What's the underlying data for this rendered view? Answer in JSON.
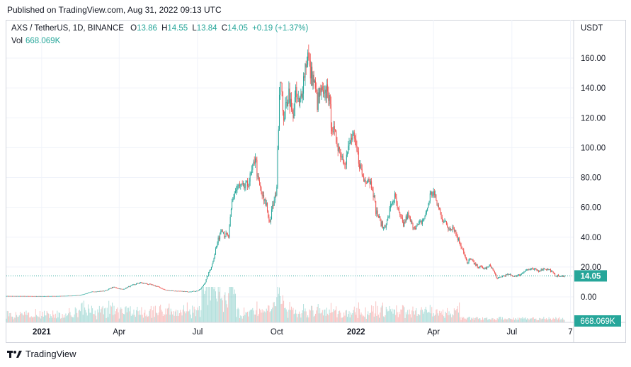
{
  "header": {
    "published": "Published on TradingView.com, Aug 31, 2022 09:13 UTC"
  },
  "legend": {
    "symbol": "AXS / TetherUS, 1D, BINANCE",
    "o_label": "O",
    "o_value": "13.86",
    "h_label": "H",
    "h_value": "14.55",
    "l_label": "L",
    "l_value": "13.84",
    "c_label": "C",
    "c_value": "14.05",
    "change": "+0.19 (+1.37%)",
    "vol_label": "Vol",
    "vol_value": "668.069K"
  },
  "price_axis": {
    "currency": "USDT",
    "last_price_badge": "14.05",
    "volume_badge": "668.069K"
  },
  "footer": {
    "brand": "TradingView"
  },
  "colors": {
    "up": "#26a69a",
    "down": "#ef5350",
    "badge": "#26a69a",
    "grid": "#f0f3fa"
  },
  "chart_data": {
    "type": "candlestick",
    "interval": "1D",
    "y_ticks": [
      "0.00",
      "20.00",
      "40.00",
      "60.00",
      "80.00",
      "100.00",
      "120.00",
      "140.00",
      "160.00"
    ],
    "y_tick_values": [
      0,
      20,
      40,
      60,
      80,
      100,
      120,
      140,
      160
    ],
    "x_ticks": [
      "2021",
      "Apr",
      "Jul",
      "Oct",
      "2022",
      "Apr",
      "Jul",
      "7"
    ],
    "x_tick_dates": [
      "2021-01-01",
      "2021-04-01",
      "2021-07-01",
      "2021-10-01",
      "2022-01-01",
      "2022-04-01",
      "2022-07-01",
      "2022-09-07"
    ],
    "bold_x_ticks": [
      "2021",
      "2022"
    ],
    "date_range": [
      "2020-11-21",
      "2022-08-31"
    ],
    "ylim": [
      -7,
      173
    ],
    "grid": true,
    "last_close": 14.05,
    "close_path": [
      [
        "2020-11-21",
        0.6
      ],
      [
        "2020-12-15",
        0.55
      ],
      [
        "2021-01-01",
        0.5
      ],
      [
        "2021-01-20",
        0.6
      ],
      [
        "2021-02-05",
        0.8
      ],
      [
        "2021-02-15",
        1.2
      ],
      [
        "2021-03-01",
        3.5
      ],
      [
        "2021-03-15",
        4.0
      ],
      [
        "2021-03-25",
        6.5
      ],
      [
        "2021-04-05",
        5.0
      ],
      [
        "2021-04-15",
        7.5
      ],
      [
        "2021-04-25",
        9.5
      ],
      [
        "2021-05-05",
        8.5
      ],
      [
        "2021-05-15",
        7.0
      ],
      [
        "2021-05-25",
        4.5
      ],
      [
        "2021-06-05",
        4.0
      ],
      [
        "2021-06-20",
        3.5
      ],
      [
        "2021-07-01",
        4.0
      ],
      [
        "2021-07-05",
        5.5
      ],
      [
        "2021-07-10",
        10.0
      ],
      [
        "2021-07-14",
        16.0
      ],
      [
        "2021-07-18",
        22.0
      ],
      [
        "2021-07-22",
        32.0
      ],
      [
        "2021-07-26",
        40.0
      ],
      [
        "2021-07-29",
        47.0
      ],
      [
        "2021-08-01",
        42.0
      ],
      [
        "2021-08-06",
        40.0
      ],
      [
        "2021-08-10",
        63.0
      ],
      [
        "2021-08-13",
        70.0
      ],
      [
        "2021-08-18",
        74.0
      ],
      [
        "2021-08-23",
        73.0
      ],
      [
        "2021-08-28",
        75.0
      ],
      [
        "2021-09-03",
        85.0
      ],
      [
        "2021-09-06",
        95.0
      ],
      [
        "2021-09-09",
        78.0
      ],
      [
        "2021-09-12",
        72.0
      ],
      [
        "2021-09-16",
        64.0
      ],
      [
        "2021-09-19",
        62.0
      ],
      [
        "2021-09-21",
        54.0
      ],
      [
        "2021-09-23",
        50.0
      ],
      [
        "2021-09-26",
        60.0
      ],
      [
        "2021-09-29",
        66.0
      ],
      [
        "2021-10-01",
        75.0
      ],
      [
        "2021-10-02",
        95.0
      ],
      [
        "2021-10-04",
        140.0
      ],
      [
        "2021-10-06",
        150.0
      ],
      [
        "2021-10-08",
        120.0
      ],
      [
        "2021-10-11",
        125.0
      ],
      [
        "2021-10-15",
        138.0
      ],
      [
        "2021-10-19",
        120.0
      ],
      [
        "2021-10-23",
        135.0
      ],
      [
        "2021-10-27",
        128.0
      ],
      [
        "2021-10-31",
        142.0
      ],
      [
        "2021-11-03",
        155.0
      ],
      [
        "2021-11-06",
        162.0
      ],
      [
        "2021-11-09",
        150.0
      ],
      [
        "2021-11-13",
        145.0
      ],
      [
        "2021-11-17",
        130.0
      ],
      [
        "2021-11-21",
        138.0
      ],
      [
        "2021-11-25",
        132.0
      ],
      [
        "2021-11-29",
        142.0
      ],
      [
        "2021-12-03",
        118.0
      ],
      [
        "2021-12-06",
        110.0
      ],
      [
        "2021-12-10",
        104.0
      ],
      [
        "2021-12-15",
        95.0
      ],
      [
        "2021-12-20",
        92.0
      ],
      [
        "2021-12-25",
        103.0
      ],
      [
        "2021-12-28",
        108.0
      ],
      [
        "2022-01-02",
        97.0
      ],
      [
        "2022-01-06",
        87.0
      ],
      [
        "2022-01-10",
        78.0
      ],
      [
        "2022-01-15",
        80.0
      ],
      [
        "2022-01-20",
        74.0
      ],
      [
        "2022-01-24",
        58.0
      ],
      [
        "2022-01-28",
        52.0
      ],
      [
        "2022-02-02",
        46.0
      ],
      [
        "2022-02-07",
        52.0
      ],
      [
        "2022-02-11",
        63.0
      ],
      [
        "2022-02-15",
        67.0
      ],
      [
        "2022-02-20",
        55.0
      ],
      [
        "2022-02-25",
        48.0
      ],
      [
        "2022-03-02",
        55.0
      ],
      [
        "2022-03-07",
        48.0
      ],
      [
        "2022-03-12",
        47.0
      ],
      [
        "2022-03-18",
        50.0
      ],
      [
        "2022-03-23",
        55.0
      ],
      [
        "2022-03-28",
        68.0
      ],
      [
        "2022-04-01",
        70.0
      ],
      [
        "2022-04-04",
        64.0
      ],
      [
        "2022-04-08",
        58.0
      ],
      [
        "2022-04-12",
        52.0
      ],
      [
        "2022-04-18",
        46.0
      ],
      [
        "2022-04-24",
        47.0
      ],
      [
        "2022-04-30",
        38.0
      ],
      [
        "2022-05-05",
        32.0
      ],
      [
        "2022-05-10",
        22.0
      ],
      [
        "2022-05-14",
        26.0
      ],
      [
        "2022-05-18",
        22.0
      ],
      [
        "2022-05-24",
        20.0
      ],
      [
        "2022-06-01",
        19.0
      ],
      [
        "2022-06-06",
        21.0
      ],
      [
        "2022-06-10",
        17.0
      ],
      [
        "2022-06-14",
        12.0
      ],
      [
        "2022-06-20",
        14.0
      ],
      [
        "2022-06-27",
        15.0
      ],
      [
        "2022-07-03",
        14.0
      ],
      [
        "2022-07-10",
        14.5
      ],
      [
        "2022-07-17",
        18.0
      ],
      [
        "2022-07-24",
        18.5
      ],
      [
        "2022-08-01",
        17.5
      ],
      [
        "2022-08-08",
        19.0
      ],
      [
        "2022-08-14",
        18.0
      ],
      [
        "2022-08-20",
        14.5
      ],
      [
        "2022-08-27",
        13.5
      ],
      [
        "2022-08-31",
        14.05
      ]
    ]
  }
}
